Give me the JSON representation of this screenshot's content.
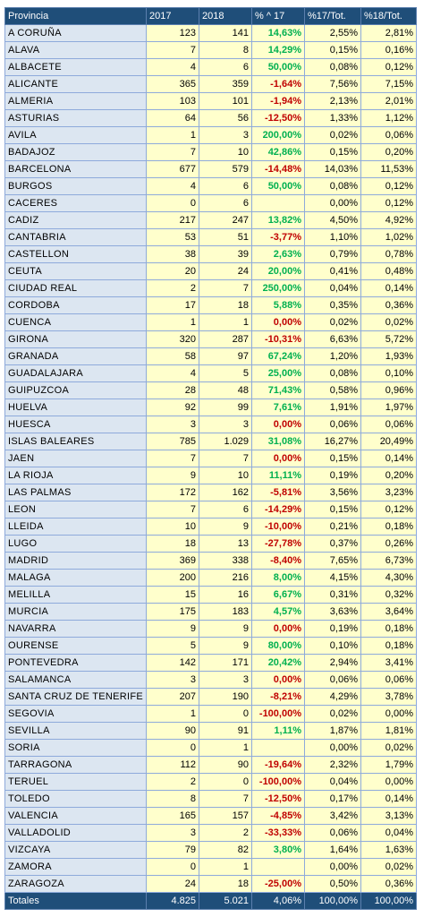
{
  "table": {
    "header": [
      "Provincia",
      "2017",
      "2018",
      "% ^ 17",
      "%17/Tot.",
      "%18/Tot."
    ],
    "rows": [
      [
        "A CORUÑA",
        "123",
        "141",
        "14,63%",
        "2,55%",
        "2,81%"
      ],
      [
        "ALAVA",
        "7",
        "8",
        "14,29%",
        "0,15%",
        "0,16%"
      ],
      [
        "ALBACETE",
        "4",
        "6",
        "50,00%",
        "0,08%",
        "0,12%"
      ],
      [
        "ALICANTE",
        "365",
        "359",
        "-1,64%",
        "7,56%",
        "7,15%"
      ],
      [
        "ALMERIA",
        "103",
        "101",
        "-1,94%",
        "2,13%",
        "2,01%"
      ],
      [
        "ASTURIAS",
        "64",
        "56",
        "-12,50%",
        "1,33%",
        "1,12%"
      ],
      [
        "AVILA",
        "1",
        "3",
        "200,00%",
        "0,02%",
        "0,06%"
      ],
      [
        "BADAJOZ",
        "7",
        "10",
        "42,86%",
        "0,15%",
        "0,20%"
      ],
      [
        "BARCELONA",
        "677",
        "579",
        "-14,48%",
        "14,03%",
        "11,53%"
      ],
      [
        "BURGOS",
        "4",
        "6",
        "50,00%",
        "0,08%",
        "0,12%"
      ],
      [
        "CACERES",
        "0",
        "6",
        null,
        "0,00%",
        "0,12%"
      ],
      [
        "CADIZ",
        "217",
        "247",
        "13,82%",
        "4,50%",
        "4,92%"
      ],
      [
        "CANTABRIA",
        "53",
        "51",
        "-3,77%",
        "1,10%",
        "1,02%"
      ],
      [
        "CASTELLON",
        "38",
        "39",
        "2,63%",
        "0,79%",
        "0,78%"
      ],
      [
        "CEUTA",
        "20",
        "24",
        "20,00%",
        "0,41%",
        "0,48%"
      ],
      [
        "CIUDAD REAL",
        "2",
        "7",
        "250,00%",
        "0,04%",
        "0,14%"
      ],
      [
        "CORDOBA",
        "17",
        "18",
        "5,88%",
        "0,35%",
        "0,36%"
      ],
      [
        "CUENCA",
        "1",
        "1",
        "0,00%",
        "0,02%",
        "0,02%"
      ],
      [
        "GIRONA",
        "320",
        "287",
        "-10,31%",
        "6,63%",
        "5,72%"
      ],
      [
        "GRANADA",
        "58",
        "97",
        "67,24%",
        "1,20%",
        "1,93%"
      ],
      [
        "GUADALAJARA",
        "4",
        "5",
        "25,00%",
        "0,08%",
        "0,10%"
      ],
      [
        "GUIPUZCOA",
        "28",
        "48",
        "71,43%",
        "0,58%",
        "0,96%"
      ],
      [
        "HUELVA",
        "92",
        "99",
        "7,61%",
        "1,91%",
        "1,97%"
      ],
      [
        "HUESCA",
        "3",
        "3",
        "0,00%",
        "0,06%",
        "0,06%"
      ],
      [
        "ISLAS BALEARES",
        "785",
        "1.029",
        "31,08%",
        "16,27%",
        "20,49%"
      ],
      [
        "JAEN",
        "7",
        "7",
        "0,00%",
        "0,15%",
        "0,14%"
      ],
      [
        "LA RIOJA",
        "9",
        "10",
        "11,11%",
        "0,19%",
        "0,20%"
      ],
      [
        "LAS PALMAS",
        "172",
        "162",
        "-5,81%",
        "3,56%",
        "3,23%"
      ],
      [
        "LEON",
        "7",
        "6",
        "-14,29%",
        "0,15%",
        "0,12%"
      ],
      [
        "LLEIDA",
        "10",
        "9",
        "-10,00%",
        "0,21%",
        "0,18%"
      ],
      [
        "LUGO",
        "18",
        "13",
        "-27,78%",
        "0,37%",
        "0,26%"
      ],
      [
        "MADRID",
        "369",
        "338",
        "-8,40%",
        "7,65%",
        "6,73%"
      ],
      [
        "MALAGA",
        "200",
        "216",
        "8,00%",
        "4,15%",
        "4,30%"
      ],
      [
        "MELILLA",
        "15",
        "16",
        "6,67%",
        "0,31%",
        "0,32%"
      ],
      [
        "MURCIA",
        "175",
        "183",
        "4,57%",
        "3,63%",
        "3,64%"
      ],
      [
        "NAVARRA",
        "9",
        "9",
        "0,00%",
        "0,19%",
        "0,18%"
      ],
      [
        "OURENSE",
        "5",
        "9",
        "80,00%",
        "0,10%",
        "0,18%"
      ],
      [
        "PONTEVEDRA",
        "142",
        "171",
        "20,42%",
        "2,94%",
        "3,41%"
      ],
      [
        "SALAMANCA",
        "3",
        "3",
        "0,00%",
        "0,06%",
        "0,06%"
      ],
      [
        "SANTA CRUZ DE TENERIFE",
        "207",
        "190",
        "-8,21%",
        "4,29%",
        "3,78%"
      ],
      [
        "SEGOVIA",
        "1",
        "0",
        "-100,00%",
        "0,02%",
        "0,00%"
      ],
      [
        "SEVILLA",
        "90",
        "91",
        "1,11%",
        "1,87%",
        "1,81%"
      ],
      [
        "SORIA",
        "0",
        "1",
        null,
        "0,00%",
        "0,02%"
      ],
      [
        "TARRAGONA",
        "112",
        "90",
        "-19,64%",
        "2,32%",
        "1,79%"
      ],
      [
        "TERUEL",
        "2",
        "0",
        "-100,00%",
        "0,04%",
        "0,00%"
      ],
      [
        "TOLEDO",
        "8",
        "7",
        "-12,50%",
        "0,17%",
        "0,14%"
      ],
      [
        "VALENCIA",
        "165",
        "157",
        "-4,85%",
        "3,42%",
        "3,13%"
      ],
      [
        "VALLADOLID",
        "3",
        "2",
        "-33,33%",
        "0,06%",
        "0,04%"
      ],
      [
        "VIZCAYA",
        "79",
        "82",
        "3,80%",
        "1,64%",
        "1,63%"
      ],
      [
        "ZAMORA",
        "0",
        "1",
        null,
        "0,00%",
        "0,02%"
      ],
      [
        "ZARAGOZA",
        "24",
        "18",
        "-25,00%",
        "0,50%",
        "0,36%"
      ]
    ],
    "totals": [
      "Totales",
      "4.825",
      "5.021",
      "4,06%",
      "100,00%",
      "100,00%"
    ]
  }
}
